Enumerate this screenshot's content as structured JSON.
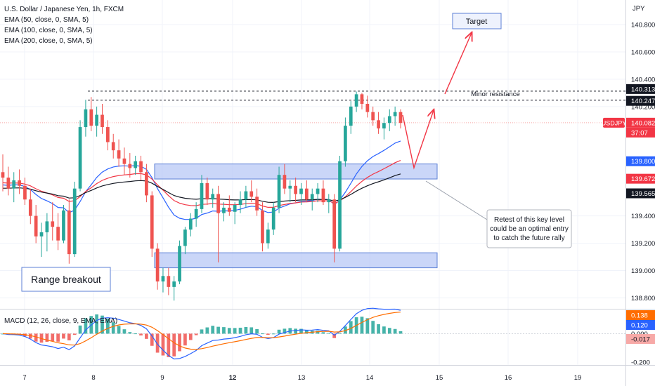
{
  "legend": {
    "title": "U.S. Dollar / Japanese Yen, 1h, FXCM",
    "indicators": [
      "EMA (50, close, 0, SMA, 5)",
      "EMA (100, close, 0, SMA, 5)",
      "EMA (200, close, 0, SMA, 5)"
    ]
  },
  "macd_legend": "MACD (12, 26, close, 9, EMA, EMA)",
  "currency": "JPY",
  "annotations": {
    "target": "Target",
    "minor_resistance": "Minor resistance",
    "range_breakout": "Range breakout",
    "retest_note": [
      "Retest of this key level",
      "could be an optimal entry",
      "to catch the future rally"
    ]
  },
  "colors": {
    "up": "#26a69a",
    "down": "#ef5350",
    "ema50": "#2962ff",
    "ema100": "#f23645",
    "ema200": "#131722",
    "macd": "#2962ff",
    "signal": "#ff6d00",
    "zone_fill": "#b8c8f5",
    "zone_stroke": "#5b7fd6",
    "arrow": "#f23645"
  },
  "chart_data": {
    "type": "candlestick",
    "symbol": "USDJPY",
    "timeframe": "1h",
    "y_ticks": [
      "140.800",
      "140.600",
      "140.400",
      "140.200",
      "139.400",
      "139.200",
      "139.000",
      "138.800"
    ],
    "y_tick_values": [
      140.8,
      140.6,
      140.4,
      140.2,
      139.4,
      139.2,
      139.0,
      138.8
    ],
    "ylim": [
      138.72,
      140.98
    ],
    "x_ticks": [
      "7",
      "8",
      "9",
      "12",
      "13",
      "14",
      "15",
      "16",
      "19"
    ],
    "price_labels": [
      {
        "text": "140.313",
        "value": 140.313,
        "style": "dark"
      },
      {
        "text": "140.247",
        "value": 140.247,
        "style": "dark"
      },
      {
        "text": "USDJPY",
        "value": 140.082,
        "style": "red-tag"
      },
      {
        "text": "140.082",
        "value": 140.082,
        "style": "red"
      },
      {
        "text": "37:07",
        "value": 140.082,
        "style": "red-sub"
      },
      {
        "text": "139.800",
        "value": 139.8,
        "style": "blue"
      },
      {
        "text": "139.672",
        "value": 139.672,
        "style": "red"
      },
      {
        "text": "139.565",
        "value": 139.565,
        "style": "dark"
      }
    ],
    "resistance_levels": [
      140.313,
      140.247
    ],
    "current_price": 140.082,
    "zones": [
      [
        139.67,
        139.78
      ],
      [
        139.02,
        139.13
      ]
    ],
    "candles": [
      [
        139.72,
        139.85,
        139.58,
        139.68
      ],
      [
        139.68,
        139.76,
        139.55,
        139.6
      ],
      [
        139.6,
        139.72,
        139.5,
        139.66
      ],
      [
        139.66,
        139.74,
        139.56,
        139.62
      ],
      [
        139.62,
        139.68,
        139.48,
        139.52
      ],
      [
        139.52,
        139.6,
        139.34,
        139.4
      ],
      [
        139.4,
        139.48,
        139.2,
        139.25
      ],
      [
        139.25,
        139.35,
        139.1,
        139.28
      ],
      [
        139.28,
        139.42,
        139.14,
        139.36
      ],
      [
        139.36,
        139.5,
        139.22,
        139.32
      ],
      [
        139.32,
        139.42,
        139.15,
        139.22
      ],
      [
        139.22,
        139.48,
        139.2,
        139.44
      ],
      [
        139.44,
        139.52,
        139.05,
        139.12
      ],
      [
        139.12,
        139.65,
        139.1,
        139.6
      ],
      [
        139.6,
        140.1,
        139.58,
        140.05
      ],
      [
        140.05,
        140.25,
        139.98,
        140.18
      ],
      [
        140.18,
        140.27,
        140.02,
        140.06
      ],
      [
        140.06,
        140.2,
        139.98,
        140.14
      ],
      [
        140.14,
        140.22,
        140.0,
        140.05
      ],
      [
        140.05,
        140.1,
        139.88,
        139.94
      ],
      [
        139.94,
        140.0,
        139.82,
        139.88
      ],
      [
        139.88,
        139.96,
        139.76,
        139.82
      ],
      [
        139.82,
        139.9,
        139.7,
        139.78
      ],
      [
        139.78,
        139.86,
        139.68,
        139.75
      ],
      [
        139.75,
        139.84,
        139.7,
        139.8
      ],
      [
        139.8,
        139.84,
        139.66,
        139.72
      ],
      [
        139.72,
        139.78,
        139.5,
        139.55
      ],
      [
        139.55,
        139.58,
        139.1,
        139.16
      ],
      [
        139.16,
        139.2,
        138.86,
        138.92
      ],
      [
        138.92,
        139.02,
        138.84,
        138.96
      ],
      [
        138.96,
        139.02,
        138.82,
        138.88
      ],
      [
        138.88,
        138.96,
        138.78,
        138.92
      ],
      [
        138.92,
        139.22,
        138.9,
        139.18
      ],
      [
        139.18,
        139.32,
        139.12,
        139.3
      ],
      [
        139.3,
        139.42,
        139.25,
        139.38
      ],
      [
        139.38,
        139.5,
        139.32,
        139.45
      ],
      [
        139.45,
        139.7,
        139.42,
        139.64
      ],
      [
        139.64,
        139.68,
        139.48,
        139.52
      ],
      [
        139.52,
        139.6,
        139.46,
        139.56
      ],
      [
        139.56,
        139.62,
        139.06,
        139.42
      ],
      [
        139.42,
        139.5,
        139.36,
        139.46
      ],
      [
        139.46,
        139.55,
        139.4,
        139.43
      ],
      [
        139.43,
        139.5,
        139.34,
        139.48
      ],
      [
        139.48,
        139.58,
        139.42,
        139.52
      ],
      [
        139.52,
        139.62,
        139.46,
        139.58
      ],
      [
        139.58,
        139.66,
        139.5,
        139.54
      ],
      [
        139.54,
        139.6,
        139.4,
        139.44
      ],
      [
        139.44,
        139.5,
        139.14,
        139.2
      ],
      [
        139.2,
        139.35,
        139.16,
        139.3
      ],
      [
        139.3,
        139.5,
        139.26,
        139.46
      ],
      [
        139.46,
        139.76,
        139.42,
        139.7
      ],
      [
        139.7,
        139.78,
        139.56,
        139.6
      ],
      [
        139.6,
        139.66,
        139.5,
        139.62
      ],
      [
        139.62,
        139.68,
        139.5,
        139.56
      ],
      [
        139.56,
        139.64,
        139.48,
        139.6
      ],
      [
        139.6,
        139.66,
        139.5,
        139.52
      ],
      [
        139.52,
        139.6,
        139.44,
        139.56
      ],
      [
        139.56,
        139.64,
        139.5,
        139.6
      ],
      [
        139.6,
        139.66,
        139.48,
        139.5
      ],
      [
        139.5,
        139.56,
        139.42,
        139.52
      ],
      [
        139.52,
        139.56,
        139.06,
        139.16
      ],
      [
        139.16,
        139.84,
        139.14,
        139.8
      ],
      [
        139.8,
        140.12,
        139.76,
        140.06
      ],
      [
        140.06,
        140.24,
        140.0,
        140.2
      ],
      [
        140.2,
        140.31,
        140.16,
        140.29
      ],
      [
        140.29,
        140.3,
        140.18,
        140.22
      ],
      [
        140.22,
        140.28,
        140.12,
        140.16
      ],
      [
        140.16,
        140.2,
        140.06,
        140.1
      ],
      [
        140.1,
        140.16,
        140.0,
        140.04
      ],
      [
        140.04,
        140.12,
        139.96,
        140.08
      ],
      [
        140.08,
        140.18,
        140.02,
        140.13
      ],
      [
        140.13,
        140.2,
        140.06,
        140.16
      ],
      [
        140.16,
        140.18,
        140.04,
        140.08
      ]
    ],
    "macd_panel": {
      "y_ticks": [
        "0.000",
        "-0.200"
      ],
      "y_tick_values": [
        0.0,
        -0.2
      ],
      "ylim": [
        -0.22,
        0.17
      ],
      "value_labels": [
        {
          "text": "0.138",
          "value": 0.138,
          "style": "orange"
        },
        {
          "text": "0.120",
          "value": 0.12,
          "style": "blue"
        },
        {
          "text": "-0.017",
          "value": -0.017,
          "style": "red"
        }
      ]
    }
  }
}
